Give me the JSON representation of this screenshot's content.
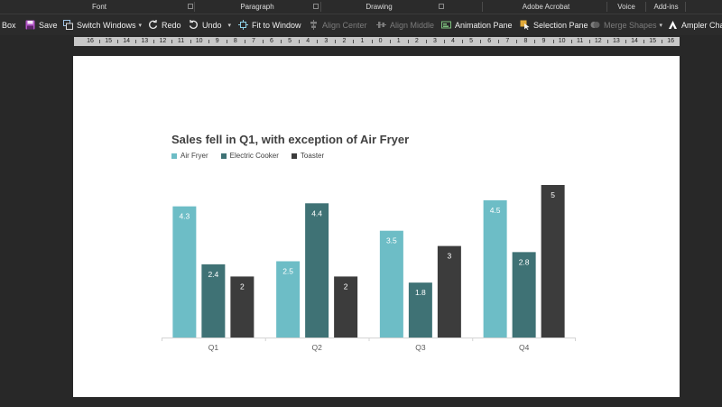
{
  "ribbon_groups": [
    "Font",
    "Paragraph",
    "Drawing",
    "Adobe Acrobat",
    "Voice",
    "Add-ins"
  ],
  "toolbar": {
    "textbox_partial": "Box",
    "save": "Save",
    "switch_windows": "Switch Windows",
    "redo": "Redo",
    "undo": "Undo",
    "fit_to_window": "Fit to Window",
    "align_center": "Align Center",
    "align_middle": "Align Middle",
    "animation_pane": "Animation Pane",
    "selection_pane": "Selection Pane",
    "merge_shapes": "Merge Shapes",
    "ampler": "Ampler Cha"
  },
  "ruler_ticks": [
    "16",
    "15",
    "14",
    "13",
    "12",
    "11",
    "10",
    "9",
    "8",
    "7",
    "6",
    "5",
    "4",
    "3",
    "2",
    "1",
    "0",
    "1",
    "2",
    "3",
    "4",
    "5",
    "6",
    "7",
    "8",
    "9",
    "10",
    "11",
    "12",
    "13",
    "14",
    "15",
    "16"
  ],
  "chart_data": {
    "type": "bar",
    "title": "Sales fell in Q1, with exception of Air Fryer",
    "categories": [
      "Q1",
      "Q2",
      "Q3",
      "Q4"
    ],
    "series": [
      {
        "name": "Air Fryer",
        "values": [
          4.3,
          2.5,
          3.5,
          4.5
        ],
        "color": "#6dbdc6"
      },
      {
        "name": "Electric Cooker",
        "values": [
          2.4,
          4.4,
          1.8,
          2.8
        ],
        "color": "#3f7275"
      },
      {
        "name": "Toaster",
        "values": [
          2,
          2,
          3,
          5
        ],
        "color": "#3c3c3c"
      }
    ],
    "ylim": [
      0,
      5
    ],
    "legend_position": "top-left",
    "grid": false,
    "data_labels": true
  },
  "colors": {
    "window_bg": "#282828",
    "toolbar_bg": "#2b2b2b",
    "slide_bg": "#ffffff",
    "title_text": "#404040"
  }
}
